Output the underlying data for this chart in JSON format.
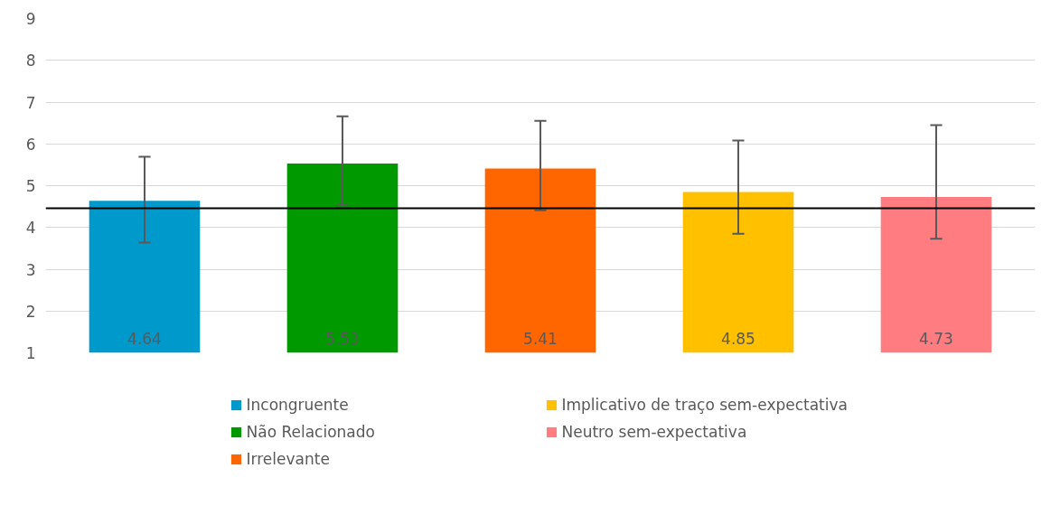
{
  "chart_data": {
    "type": "bar",
    "categories": [
      null,
      null,
      null,
      null,
      null
    ],
    "series": [
      {
        "name": "Incongruente",
        "color": "#0099cc",
        "values": [
          4.64,
          null,
          null,
          null,
          null
        ],
        "errors": [
          [
            3.64,
            5.69
          ],
          null,
          null,
          null,
          null
        ]
      },
      {
        "name": "Não Relacionado",
        "color": "#009900",
        "values": [
          null,
          5.53,
          null,
          null,
          null
        ],
        "errors": [
          null,
          [
            4.53,
            6.66
          ],
          null,
          null,
          null
        ]
      },
      {
        "name": "Irrelevante",
        "color": "#ff6600",
        "values": [
          null,
          null,
          5.41,
          null,
          null
        ],
        "errors": [
          null,
          null,
          [
            4.41,
            6.55
          ],
          null,
          null
        ]
      },
      {
        "name": "Implicativo de traço sem-expectativa",
        "color": "#ffc000",
        "values": [
          null,
          null,
          null,
          4.85,
          null
        ],
        "errors": [
          null,
          null,
          null,
          [
            3.85,
            6.08
          ],
          null
        ]
      },
      {
        "name": "Neutro sem-expectativa",
        "color": "#ff7c80",
        "values": [
          null,
          null,
          null,
          null,
          4.73
        ],
        "errors": [
          null,
          null,
          null,
          null,
          [
            3.73,
            6.45
          ]
        ]
      }
    ],
    "ylim": [
      1,
      9
    ],
    "yticks": [
      1,
      2,
      3,
      4,
      5,
      6,
      7,
      8,
      9
    ],
    "ref_lines": [
      {
        "axis": "y",
        "value": 4.46,
        "color": "#000000"
      }
    ],
    "data_labels": true,
    "grid": "y",
    "legend": "bottom",
    "tick_labels": "y"
  }
}
